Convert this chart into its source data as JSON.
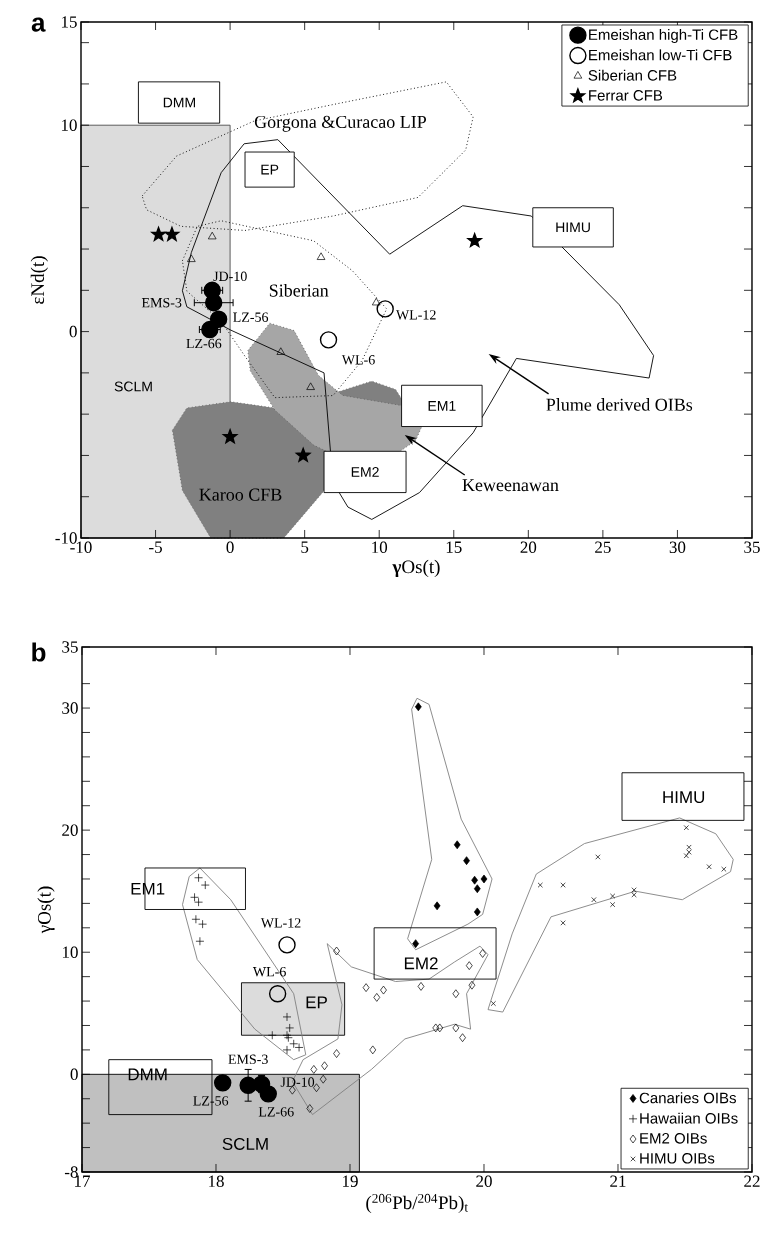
{
  "chart_data": [
    {
      "type": "scatter",
      "title": "a",
      "xlabel": "**γ**Os(t)",
      "ylabel": "εNd(t)",
      "xlim": [
        -10,
        35
      ],
      "ylim": [
        -10,
        15
      ],
      "xticks": [
        -10,
        -5,
        0,
        5,
        10,
        15,
        20,
        25,
        30,
        35
      ],
      "yticks": [
        -10,
        {
          "value": -8,
          "label": null
        },
        {
          "value": -6,
          "label": null
        },
        {
          "value": -4,
          "label": null
        },
        {
          "value": -2,
          "label": null
        },
        0,
        {
          "value": 2,
          "label": null
        },
        {
          "value": 4,
          "label": null
        },
        {
          "value": 6,
          "label": null
        },
        {
          "value": 8,
          "label": null
        },
        10,
        {
          "value": 12,
          "label": null
        },
        {
          "value": 14,
          "label": null
        },
        15
      ],
      "legend": "top right",
      "annotations": [
        {
          "text": "JD-10",
          "x": -1.2,
          "y": 2.0
        },
        {
          "text": "EMS-3",
          "x": -1.1,
          "y": 1.4
        },
        {
          "text": "LZ-56",
          "x": -0.77,
          "y": 0.6
        },
        {
          "text": "LZ-66",
          "x": -1.36,
          "y": 0.1
        },
        {
          "text": "WL-12",
          "x": 10.4,
          "y": 1.1
        },
        {
          "text": "WL-6",
          "x": 6.6,
          "y": -0.4
        },
        "Siberian",
        "Gorgona &Curacao LIP",
        "Karoo CFB",
        "SCLM",
        "DMM",
        "EP",
        "HIMU",
        "EM1",
        "EM2",
        "Keweenawan",
        "Plume derived OIBs"
      ],
      "series": [
        {
          "name": "Emeishan high-Ti CFB",
          "marker": "circle",
          "color": "#000000",
          "x": [
            -1.2,
            -1.1,
            -0.77,
            -1.36
          ],
          "values": [
            2.0,
            1.4,
            0.6,
            0.1
          ],
          "xerrors": [
            0.7,
            1.3,
            null,
            0.7
          ]
        },
        {
          "name": "Emeishan low-Ti CFB",
          "marker": "circle-open",
          "color": "#000000",
          "x": [
            10.4,
            6.6
          ],
          "values": [
            1.1,
            -0.4
          ]
        },
        {
          "name": "Siberian CFB",
          "marker": "triangle-open",
          "color": "#000000",
          "x": [
            -1.2,
            -2.6,
            6.1,
            9.8,
            3.4,
            5.4
          ],
          "values": [
            4.6,
            3.5,
            3.6,
            1.4,
            -1.0,
            -2.7
          ]
        },
        {
          "name": "Ferrar CFB",
          "marker": "star",
          "color": "#000000",
          "x": [
            -4.8,
            -3.9,
            16.4,
            0.0,
            4.9
          ],
          "values": [
            4.7,
            4.7,
            4.4,
            -5.1,
            -6.0
          ]
        }
      ]
    },
    {
      "type": "scatter",
      "title": "b",
      "xlabel": "($^{206}$Pb/$^{204}$Pb)$_{t}$",
      "ylabel": "γOs(t)",
      "xlim": [
        17,
        22
      ],
      "ylim": [
        -8,
        35
      ],
      "xticks": [
        17,
        18,
        19,
        20,
        21,
        22
      ],
      "yticks": [
        -8,
        {
          "value": -6,
          "label": null
        },
        {
          "value": -4,
          "label": null
        },
        {
          "value": -2,
          "label": null
        },
        0,
        {
          "value": 2,
          "label": null
        },
        {
          "value": 4,
          "label": null
        },
        {
          "value": 6,
          "label": null
        },
        {
          "value": 8,
          "label": null
        },
        10,
        {
          "value": 12,
          "label": null
        },
        {
          "value": 14,
          "label": null
        },
        {
          "value": 16,
          "label": null
        },
        {
          "value": 18,
          "label": null
        },
        20,
        {
          "value": 22,
          "label": null
        },
        {
          "value": 24,
          "label": null
        },
        {
          "value": 26,
          "label": null
        },
        {
          "value": 28,
          "label": null
        },
        30,
        {
          "value": 32,
          "label": null
        },
        35
      ],
      "legend": "bottom right",
      "annotations": [
        {
          "text": "WL-12",
          "x": 18.53,
          "y": 10.6
        },
        {
          "text": "WL-6",
          "x": 18.46,
          "y": 6.6
        },
        {
          "text": "EMS-3",
          "x": 18.24,
          "y": -0.9
        },
        {
          "text": "LZ-56",
          "x": 18.05,
          "y": -0.7
        },
        {
          "text": "JD-10",
          "x": 18.34,
          "y": -0.8
        },
        {
          "text": "LZ-66",
          "x": 18.39,
          "y": -1.6
        },
        "EM1",
        "EM2",
        "EP",
        "DMM",
        "HIMU",
        "SCLM"
      ],
      "series": [
        {
          "name": "Canaries OIBs",
          "marker": "diamond",
          "color": "#000000",
          "x": [
            19.51,
            19.8,
            19.87,
            19.93,
            20.0,
            19.95,
            19.65,
            19.95,
            19.49
          ],
          "values": [
            30.1,
            18.8,
            17.5,
            15.9,
            16.0,
            15.2,
            13.8,
            13.3,
            10.7
          ]
        },
        {
          "name": "Hawaiian OIBs",
          "marker": "plus",
          "color": "#000000",
          "x": [
            17.87,
            17.92,
            17.84,
            17.87,
            17.85,
            17.9,
            17.88,
            18.53,
            18.55,
            18.42,
            18.53,
            18.54,
            18.58,
            18.62,
            18.53
          ],
          "values": [
            16.1,
            15.5,
            14.5,
            14.1,
            12.7,
            12.3,
            10.9,
            4.7,
            3.8,
            3.2,
            3.2,
            3.0,
            2.5,
            2.2,
            2.0
          ]
        },
        {
          "name": "EM2 OIBs",
          "marker": "diamond-open",
          "color": "#000000",
          "x": [
            18.9,
            19.12,
            19.25,
            19.2,
            19.53,
            19.79,
            19.89,
            19.99,
            19.91,
            19.64,
            19.67,
            19.79,
            19.84,
            19.17,
            18.9,
            18.73,
            18.81,
            18.8,
            18.75,
            18.57,
            18.7
          ],
          "values": [
            10.1,
            7.1,
            6.9,
            6.3,
            7.2,
            6.6,
            8.9,
            9.9,
            7.3,
            3.8,
            3.8,
            3.8,
            3.0,
            2.0,
            1.7,
            0.4,
            0.7,
            -0.4,
            -1.1,
            -1.3,
            -2.8
          ]
        },
        {
          "name": "HIMU OIBs",
          "marker": "cross",
          "color": "#000000",
          "x": [
            20.42,
            20.59,
            20.85,
            20.82,
            20.96,
            20.96,
            21.12,
            21.12,
            21.51,
            21.53,
            21.53,
            21.51,
            21.68,
            21.79,
            20.59,
            20.07
          ],
          "values": [
            15.5,
            15.5,
            17.8,
            14.3,
            14.6,
            13.9,
            15.1,
            14.7,
            20.2,
            18.6,
            18.2,
            17.9,
            17.0,
            16.8,
            12.4,
            5.8
          ]
        },
        {
          "marker": "circle",
          "color": "#000000",
          "x": [
            18.05,
            18.24,
            18.34,
            18.39
          ],
          "values": [
            -0.7,
            -0.9,
            -0.8,
            -1.6
          ],
          "errors": [
            null,
            1.3,
            0.7,
            null
          ]
        },
        {
          "marker": "circle-open",
          "color": "#000000",
          "x": [
            18.53,
            18.46
          ],
          "values": [
            10.6,
            6.6
          ]
        }
      ]
    }
  ]
}
